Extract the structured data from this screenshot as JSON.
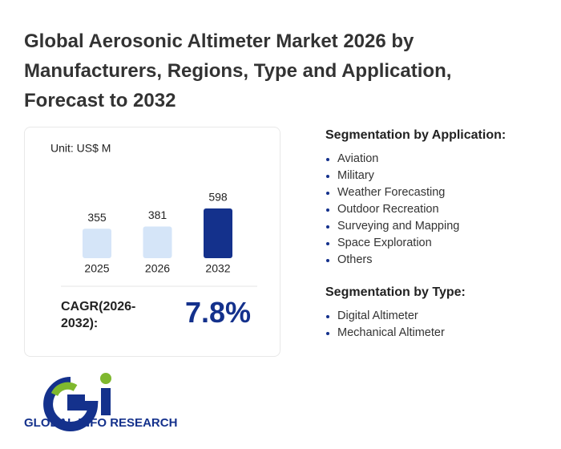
{
  "title": "Global Aerosonic Altimeter Market 2026 by Manufacturers, Regions, Type and Application, Forecast to 2032",
  "chart_data": {
    "type": "bar",
    "unit": "Unit: US$ M",
    "categories": [
      "2025",
      "2026",
      "2032"
    ],
    "values": [
      355,
      381,
      598
    ],
    "colors": [
      "#d5e5f8",
      "#d5e5f8",
      "#14318c"
    ]
  },
  "cagr": {
    "label": "CAGR(2026-2032):",
    "value": "7.8%"
  },
  "segments": [
    {
      "title": "Segmentation by Application:",
      "items": [
        "Aviation",
        "Military",
        "Weather Forecasting",
        "Outdoor Recreation",
        "Surveying and Mapping",
        "Space Exploration",
        "Others"
      ]
    },
    {
      "title": "Segmentation by Type:",
      "items": [
        "Digital Altimeter",
        "Mechanical Altimeter"
      ]
    }
  ],
  "logo": {
    "text": "GLOBAL INFO RESEARCH"
  }
}
